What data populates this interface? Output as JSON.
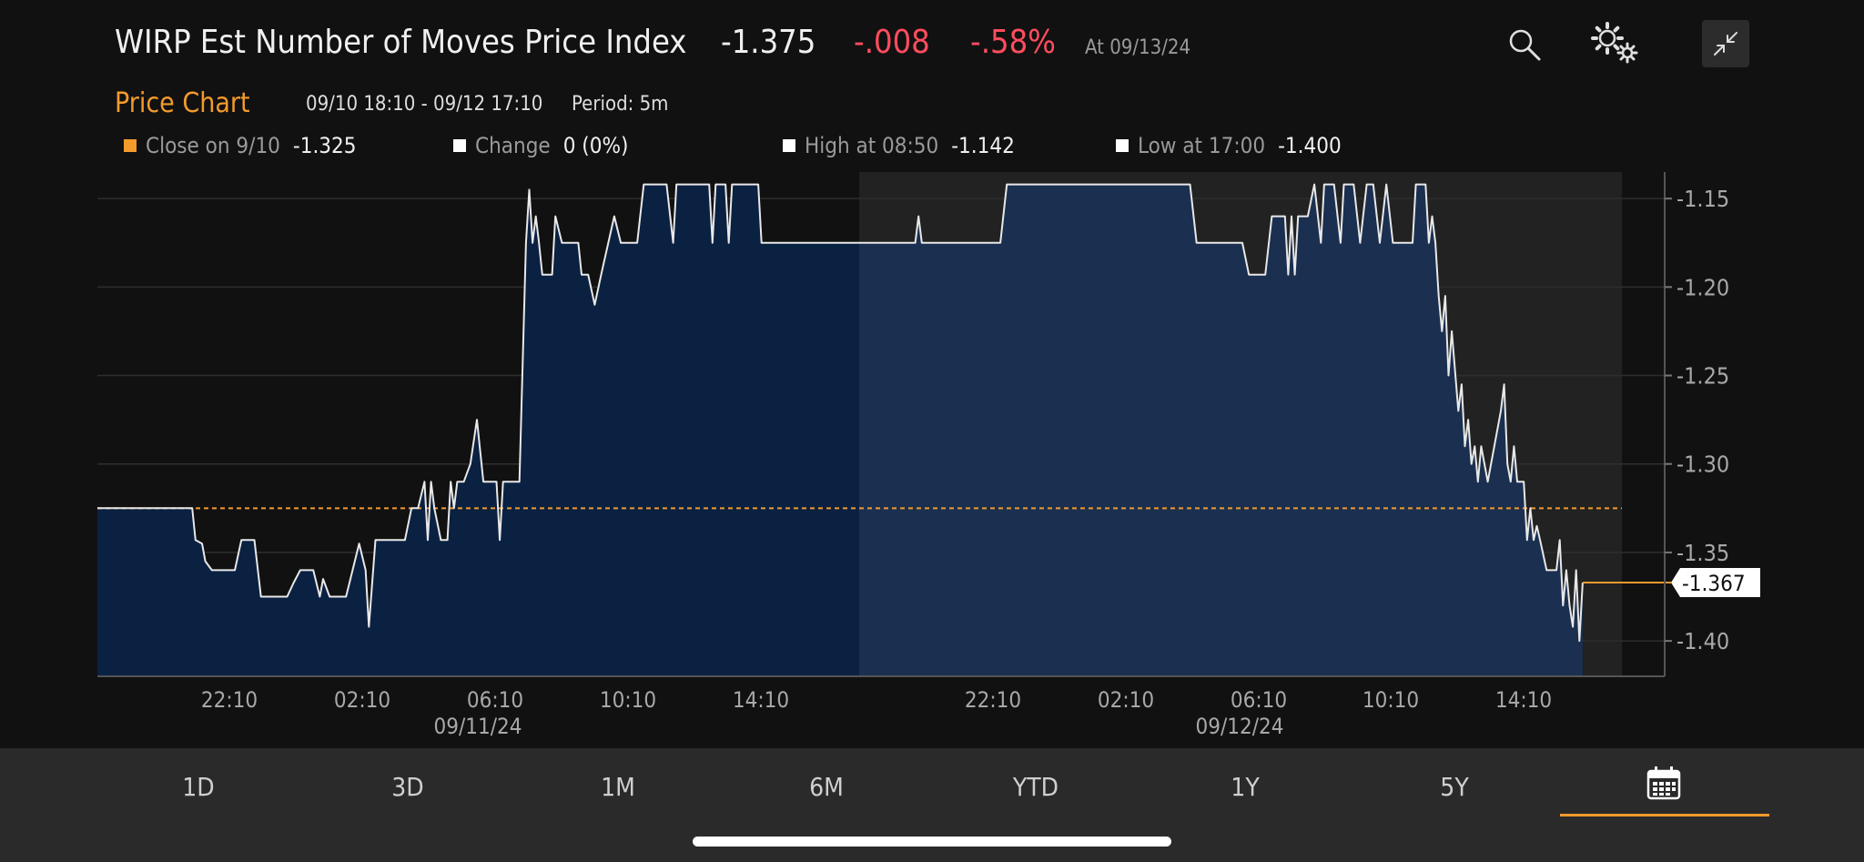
{
  "header": {
    "title": "WIRP Est Number of Moves Price Index",
    "price": "-1.375",
    "change": "-.008",
    "change_pct": "-.58%",
    "as_of": "At 09/13/24",
    "icons": [
      "search-icon",
      "gear-icon",
      "collapse-icon"
    ]
  },
  "subheader": {
    "section_label": "Price Chart",
    "date_range": "09/10 18:10 - 09/12 17:10",
    "period": "Period: 5m"
  },
  "legend": {
    "close_label": "Close on 9/10",
    "close_value": "-1.325",
    "change_label": "Change",
    "change_value": "0 (0%)",
    "high_label": "High at 08:50",
    "high_value": "-1.142",
    "low_label": "Low at 17:00",
    "low_value": "-1.400"
  },
  "colors": {
    "accent": "#f39a2c",
    "negative": "#ff4d5e",
    "area_fill": "#0b2142",
    "area_fill_highlight": "#1b3050",
    "line": "#e8e8e8",
    "background": "#111111"
  },
  "chart_data": {
    "type": "area",
    "title": "",
    "xlabel": "",
    "ylabel": "",
    "ylim": [
      -1.42,
      -1.135
    ],
    "y_ticks": [
      "-1.15",
      "-1.20",
      "-1.25",
      "-1.30",
      "-1.35",
      "-1.40"
    ],
    "x_tick_labels": [
      "22:10",
      "02:10",
      "06:10",
      "10:10",
      "14:10",
      "22:10",
      "02:10",
      "06:10",
      "10:10",
      "14:10"
    ],
    "date_labels": [
      {
        "date": "09/11/24",
        "under": "06:10"
      },
      {
        "date": "09/12/24",
        "under": "06:10"
      }
    ],
    "previous_close": -1.325,
    "last_value_label": "-1.367",
    "last_value": -1.367,
    "highlighted_session": "09/11 evening to 09/12 close",
    "series": [
      {
        "values": [
          [
            0,
            -1.325
          ],
          [
            2.9,
            -1.325
          ],
          [
            3.0,
            -1.343
          ],
          [
            3.2,
            -1.345
          ],
          [
            3.3,
            -1.355
          ],
          [
            3.5,
            -1.36
          ],
          [
            4.2,
            -1.36
          ],
          [
            4.4,
            -1.343
          ],
          [
            4.8,
            -1.343
          ],
          [
            5.0,
            -1.375
          ],
          [
            5.8,
            -1.375
          ],
          [
            6.0,
            -1.367
          ],
          [
            6.2,
            -1.36
          ],
          [
            6.6,
            -1.36
          ],
          [
            6.8,
            -1.375
          ],
          [
            6.9,
            -1.365
          ],
          [
            7.1,
            -1.375
          ],
          [
            7.6,
            -1.375
          ],
          [
            7.8,
            -1.36
          ],
          [
            8.0,
            -1.345
          ],
          [
            8.2,
            -1.36
          ],
          [
            8.3,
            -1.392
          ],
          [
            8.5,
            -1.343
          ],
          [
            9.4,
            -1.343
          ],
          [
            9.6,
            -1.325
          ],
          [
            9.8,
            -1.325
          ],
          [
            10.0,
            -1.31
          ],
          [
            10.1,
            -1.343
          ],
          [
            10.2,
            -1.31
          ],
          [
            10.3,
            -1.325
          ],
          [
            10.5,
            -1.343
          ],
          [
            10.7,
            -1.343
          ],
          [
            10.8,
            -1.31
          ],
          [
            10.9,
            -1.325
          ],
          [
            11.0,
            -1.31
          ],
          [
            11.2,
            -1.31
          ],
          [
            11.4,
            -1.3
          ],
          [
            11.6,
            -1.275
          ],
          [
            11.8,
            -1.31
          ],
          [
            12.2,
            -1.31
          ],
          [
            12.3,
            -1.343
          ],
          [
            12.4,
            -1.31
          ],
          [
            12.9,
            -1.31
          ],
          [
            13.1,
            -1.175
          ],
          [
            13.2,
            -1.145
          ],
          [
            13.3,
            -1.175
          ],
          [
            13.4,
            -1.16
          ],
          [
            13.5,
            -1.175
          ],
          [
            13.6,
            -1.193
          ],
          [
            13.9,
            -1.193
          ],
          [
            14.0,
            -1.16
          ],
          [
            14.2,
            -1.175
          ],
          [
            14.7,
            -1.175
          ],
          [
            14.8,
            -1.193
          ],
          [
            15.0,
            -1.193
          ],
          [
            15.2,
            -1.21
          ],
          [
            15.4,
            -1.193
          ],
          [
            15.8,
            -1.16
          ],
          [
            16.0,
            -1.175
          ],
          [
            16.5,
            -1.175
          ],
          [
            16.7,
            -1.142
          ],
          [
            17.4,
            -1.142
          ],
          [
            17.6,
            -1.175
          ],
          [
            17.7,
            -1.142
          ],
          [
            18.7,
            -1.142
          ],
          [
            18.8,
            -1.175
          ],
          [
            18.9,
            -1.142
          ],
          [
            19.2,
            -1.142
          ],
          [
            19.3,
            -1.175
          ],
          [
            19.4,
            -1.142
          ],
          [
            20.2,
            -1.142
          ],
          [
            20.3,
            -1.175
          ],
          [
            25.0,
            -1.175
          ],
          [
            25.1,
            -1.16
          ],
          [
            25.2,
            -1.175
          ],
          [
            27.6,
            -1.175
          ],
          [
            27.8,
            -1.142
          ],
          [
            33.4,
            -1.142
          ],
          [
            33.6,
            -1.175
          ],
          [
            35.0,
            -1.175
          ],
          [
            35.2,
            -1.193
          ],
          [
            35.7,
            -1.193
          ],
          [
            35.9,
            -1.16
          ],
          [
            36.3,
            -1.16
          ],
          [
            36.4,
            -1.193
          ],
          [
            36.5,
            -1.16
          ],
          [
            36.6,
            -1.193
          ],
          [
            36.7,
            -1.16
          ],
          [
            37.0,
            -1.16
          ],
          [
            37.2,
            -1.142
          ],
          [
            37.4,
            -1.175
          ],
          [
            37.5,
            -1.142
          ],
          [
            37.8,
            -1.142
          ],
          [
            38.0,
            -1.175
          ],
          [
            38.1,
            -1.142
          ],
          [
            38.4,
            -1.142
          ],
          [
            38.6,
            -1.175
          ],
          [
            38.8,
            -1.142
          ],
          [
            39.0,
            -1.142
          ],
          [
            39.2,
            -1.175
          ],
          [
            39.4,
            -1.142
          ],
          [
            39.6,
            -1.175
          ],
          [
            40.2,
            -1.175
          ],
          [
            40.3,
            -1.142
          ],
          [
            40.6,
            -1.142
          ],
          [
            40.7,
            -1.175
          ],
          [
            40.8,
            -1.16
          ],
          [
            40.9,
            -1.175
          ],
          [
            41.0,
            -1.205
          ],
          [
            41.1,
            -1.225
          ],
          [
            41.2,
            -1.205
          ],
          [
            41.3,
            -1.25
          ],
          [
            41.4,
            -1.225
          ],
          [
            41.6,
            -1.27
          ],
          [
            41.7,
            -1.255
          ],
          [
            41.8,
            -1.29
          ],
          [
            41.9,
            -1.275
          ],
          [
            42.0,
            -1.3
          ],
          [
            42.1,
            -1.29
          ],
          [
            42.2,
            -1.31
          ],
          [
            42.3,
            -1.29
          ],
          [
            42.5,
            -1.31
          ],
          [
            42.7,
            -1.29
          ],
          [
            42.9,
            -1.27
          ],
          [
            43.0,
            -1.255
          ],
          [
            43.1,
            -1.3
          ],
          [
            43.2,
            -1.31
          ],
          [
            43.3,
            -1.29
          ],
          [
            43.4,
            -1.31
          ],
          [
            43.6,
            -1.31
          ],
          [
            43.7,
            -1.343
          ],
          [
            43.8,
            -1.325
          ],
          [
            43.9,
            -1.343
          ],
          [
            44.0,
            -1.335
          ],
          [
            44.1,
            -1.343
          ],
          [
            44.3,
            -1.36
          ],
          [
            44.6,
            -1.36
          ],
          [
            44.7,
            -1.343
          ],
          [
            44.8,
            -1.38
          ],
          [
            44.9,
            -1.36
          ],
          [
            45.0,
            -1.38
          ],
          [
            45.1,
            -1.392
          ],
          [
            45.2,
            -1.36
          ],
          [
            45.3,
            -1.4
          ],
          [
            45.4,
            -1.367
          ],
          [
            46.6,
            -1.367
          ]
        ]
      }
    ]
  },
  "tabs": {
    "items": [
      {
        "label": "1D"
      },
      {
        "label": "3D"
      },
      {
        "label": "1M"
      },
      {
        "label": "6M"
      },
      {
        "label": "YTD"
      },
      {
        "label": "1Y"
      },
      {
        "label": "5Y"
      }
    ],
    "calendar_icon": "calendar-icon",
    "selected": "calendar"
  }
}
